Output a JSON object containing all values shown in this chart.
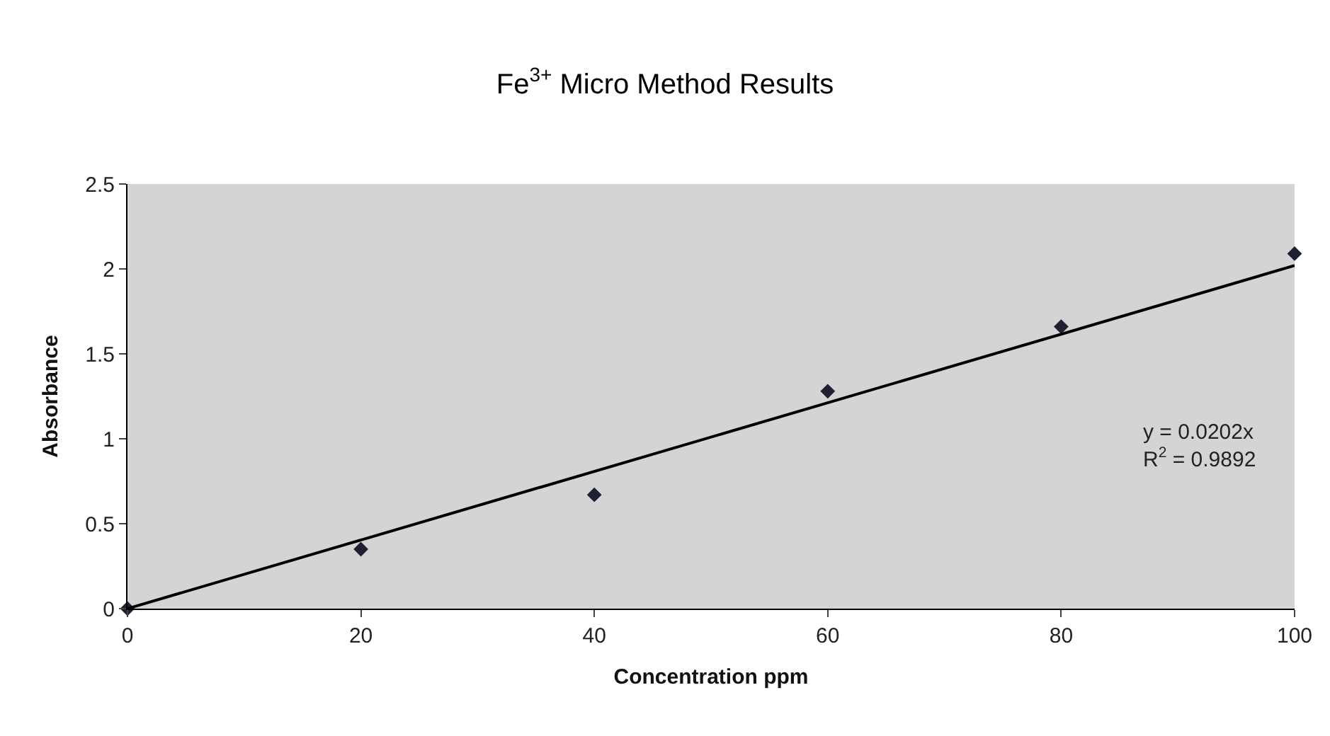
{
  "chart_data": {
    "type": "scatter",
    "title": "Fe$^{3+}$ Micro Method Results",
    "xlabel": "Concentration ppm",
    "ylabel": "Absorbance",
    "x": [
      0,
      20,
      40,
      60,
      80,
      100
    ],
    "series": [
      {
        "color": "#1f2033",
        "values": [
          0,
          0.35,
          0.67,
          1.28,
          1.66,
          2.09
        ],
        "marker": "diamond"
      },
      {
        "type": "line",
        "color": "#000000",
        "x": [
          0,
          100
        ],
        "values": [
          0,
          2.02
        ],
        "marker": "none",
        "line_style": "solid"
      }
    ],
    "annotations": [
      "y = 0.0202x\nR$^{2}$ = 0.9892"
    ],
    "xlim": [
      0,
      100
    ],
    "xticks": [
      0,
      20,
      40,
      60,
      80,
      100
    ],
    "ylim": [
      0,
      2.5
    ],
    "yticks": [
      0,
      0.5,
      1,
      1.5,
      2,
      2.5
    ],
    "grid": false
  }
}
